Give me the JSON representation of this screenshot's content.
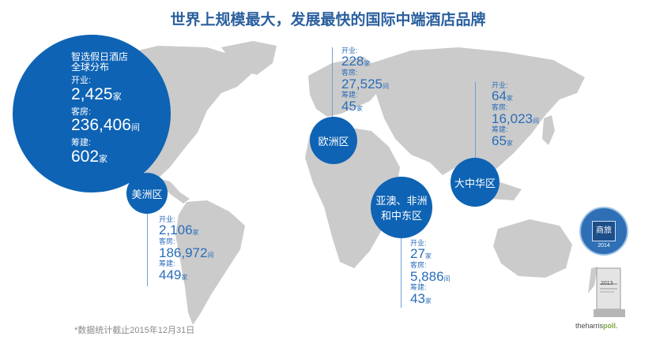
{
  "title": "世界上规模最大，发展最快的国际中端酒店品牌",
  "global": {
    "heading1": "智选假日酒店",
    "heading2": "全球分布",
    "open_label": "开业:",
    "open_value": "2,425",
    "open_unit": "家",
    "rooms_label": "客房:",
    "rooms_value": "236,406",
    "rooms_unit": "间",
    "pipeline_label": "筹建:",
    "pipeline_value": "602",
    "pipeline_unit": "家"
  },
  "regions": {
    "americas": {
      "name": "美洲区",
      "open_label": "开业:",
      "open_value": "2,106",
      "open_unit": "家",
      "rooms_label": "客房:",
      "rooms_value": "186,972",
      "rooms_unit": "间",
      "pipeline_label": "筹建:",
      "pipeline_value": "449",
      "pipeline_unit": "家"
    },
    "europe": {
      "name": "欧洲区",
      "open_label": "开业:",
      "open_value": "228",
      "open_unit": "家",
      "rooms_label": "客房:",
      "rooms_value": "27,525",
      "rooms_unit": "间",
      "pipeline_label": "筹建:",
      "pipeline_value": "45",
      "pipeline_unit": "家"
    },
    "amea": {
      "name1": "亚澳、非洲",
      "name2": "和中东区",
      "open_label": "开业:",
      "open_value": "27",
      "open_unit": "家",
      "rooms_label": "客房:",
      "rooms_value": "5,886",
      "rooms_unit": "间",
      "pipeline_label": "筹建:",
      "pipeline_value": "43",
      "pipeline_unit": "家"
    },
    "greater_china": {
      "name": "大中华区",
      "open_label": "开业:",
      "open_value": "64",
      "open_unit": "家",
      "rooms_label": "客房:",
      "rooms_value": "16,023",
      "rooms_unit": "间",
      "pipeline_label": "筹建:",
      "pipeline_value": "65",
      "pipeline_unit": "家"
    }
  },
  "footnote": "*数据统计截止2015年12月31日",
  "badge": {
    "center_text": "商旅",
    "year": "2014"
  },
  "trophy_year": "2013",
  "harris": {
    "pre": "theharris",
    "post": "poll"
  },
  "colors": {
    "bubble": "#0e63b4",
    "map": "#c8c8c8",
    "text": "#2a6db8"
  }
}
